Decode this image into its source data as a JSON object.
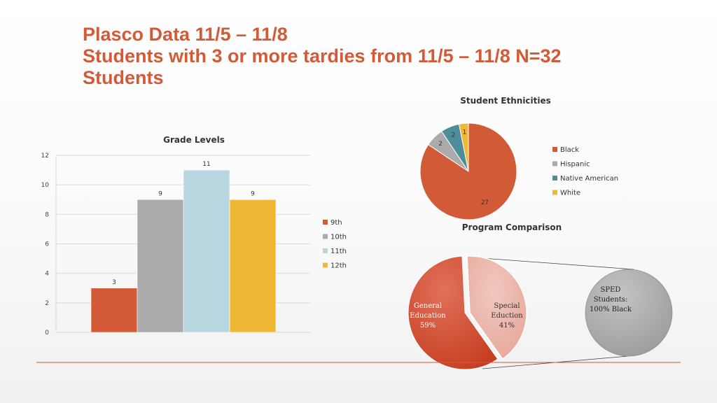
{
  "slide": {
    "title_lines": [
      "Plasco Data 11/5 – 11/8",
      "Students with 3 or more tardies from 11/5 – 11/8 N=32",
      "Students"
    ]
  },
  "colors": {
    "title": "#d35a36",
    "divider": "#d35a36"
  },
  "chart_data": [
    {
      "type": "bar",
      "title": "Grade Levels",
      "categories": [
        "9th",
        "10th",
        "11th",
        "12th"
      ],
      "values": [
        3,
        9,
        11,
        9
      ],
      "data_labels": [
        "3",
        "9",
        "11",
        "9"
      ],
      "colors": [
        "#d35a36",
        "#ababab",
        "#b7d6e0",
        "#efb835"
      ],
      "ylim": [
        0,
        12
      ],
      "yticks": [
        "0",
        "2",
        "4",
        "6",
        "8",
        "10",
        "12"
      ],
      "grid": true,
      "legend": {
        "position": "right",
        "entries": [
          "9th",
          "10th",
          "11th",
          "12th"
        ]
      }
    },
    {
      "type": "pie",
      "title": "Student Ethnicities",
      "series": [
        {
          "name": "Black",
          "value": 27,
          "color": "#d35a36"
        },
        {
          "name": "Hispanic",
          "value": 2,
          "color": "#ababab"
        },
        {
          "name": "Native American",
          "value": 2,
          "color": "#4e8d9a"
        },
        {
          "name": "White",
          "value": 1,
          "color": "#efb835"
        }
      ],
      "data_labels": [
        "27",
        "2",
        "2",
        "1"
      ],
      "legend": {
        "position": "right",
        "entries": [
          "Black",
          "Hispanic",
          "Native American",
          "White"
        ]
      }
    },
    {
      "type": "pie",
      "title": "Program Comparison",
      "series": [
        {
          "name": "General Education",
          "value": 59,
          "color": "#d0462a"
        },
        {
          "name": "Special Eduction",
          "value": 41,
          "color": "#ecb7ab"
        }
      ],
      "slice_labels": [
        [
          "General",
          "Education",
          "59%"
        ],
        [
          "Special",
          "Eduction",
          "41%"
        ]
      ],
      "breakout": {
        "label_lines": [
          "SPED",
          "Students:",
          "100% Black"
        ],
        "color": "#a9a9a9"
      }
    }
  ]
}
